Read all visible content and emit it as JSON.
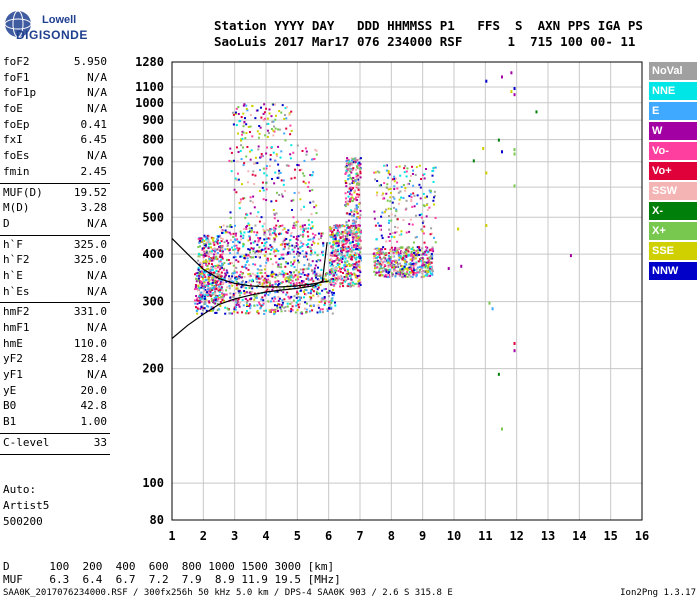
{
  "logo": {
    "line1": "Lowell",
    "line2": "DIGISONDE"
  },
  "header": {
    "labels": [
      "Station",
      "YYYY",
      "DAY",
      "DDD",
      "HHMMSS",
      "P1",
      "FFS",
      "S",
      "AXN",
      "PPS",
      "IGA",
      "PS"
    ],
    "line1": "Station YYYY DAY   DDD HHMMSS P1   FFS  S  AXN PPS IGA PS",
    "line2": "SaoLuis 2017 Mar17 076 234000 RSF      1  715 100 00- 11"
  },
  "params": [
    {
      "k": "foF2",
      "v": "5.950"
    },
    {
      "k": "foF1",
      "v": "N/A"
    },
    {
      "k": "foF1p",
      "v": "N/A"
    },
    {
      "k": "foE",
      "v": "N/A"
    },
    {
      "k": "foEp",
      "v": "0.41"
    },
    {
      "k": "fxI",
      "v": "6.45"
    },
    {
      "k": "foEs",
      "v": "N/A"
    },
    {
      "k": "fmin",
      "v": "2.45"
    },
    {
      "sep": true
    },
    {
      "k": "MUF(D)",
      "v": "19.52"
    },
    {
      "k": "M(D)",
      "v": "3.28"
    },
    {
      "k": "D",
      "v": "N/A"
    },
    {
      "sep": true
    },
    {
      "k": "h`F",
      "v": "325.0"
    },
    {
      "k": "h`F2",
      "v": "325.0"
    },
    {
      "k": "h`E",
      "v": "N/A"
    },
    {
      "k": "h`Es",
      "v": "N/A"
    },
    {
      "sep": true
    },
    {
      "k": "hmF2",
      "v": "331.0"
    },
    {
      "k": "hmF1",
      "v": "N/A"
    },
    {
      "k": "hmE",
      "v": "110.0"
    },
    {
      "k": "yF2",
      "v": "28.4"
    },
    {
      "k": "yF1",
      "v": "N/A"
    },
    {
      "k": "yE",
      "v": "20.0"
    },
    {
      "k": "B0",
      "v": "42.8"
    },
    {
      "k": "B1",
      "v": "1.00"
    },
    {
      "sep": true
    },
    {
      "k": "C-level",
      "v": "33"
    },
    {
      "sep": true
    }
  ],
  "auto": [
    "Auto:",
    "Artist5",
    "500200"
  ],
  "legend": [
    {
      "label": "NoVal",
      "color": "#a0a0a0"
    },
    {
      "label": "NNE",
      "color": "#00e5e5"
    },
    {
      "label": "E",
      "color": "#3fa9ff"
    },
    {
      "label": "W",
      "color": "#a300a3"
    },
    {
      "label": "Vo-",
      "color": "#ff3fa0"
    },
    {
      "label": "Vo+",
      "color": "#e0003a"
    },
    {
      "label": "SSW",
      "color": "#f5b4b4"
    },
    {
      "label": "X-",
      "color": "#00800a"
    },
    {
      "label": "X+",
      "color": "#78c850"
    },
    {
      "label": "SSE",
      "color": "#d0d000"
    },
    {
      "label": "NNW",
      "color": "#0000c8"
    }
  ],
  "bottom": {
    "d_line": "D      100  200  400  600  800 1000 1500 3000 [km]",
    "muf_line": "MUF    6.3  6.4  6.7  7.2  7.9  8.9 11.9 19.5 [MHz]"
  },
  "footer": "SAA0K_2017076234000.RSF / 300fx256h 50 kHz 5.0 km / DPS-4 SAA0K 903 / 2.6 S 315.8 E",
  "version": "Ion2Png 1.3.17",
  "chart_data": {
    "type": "scatter",
    "title": "",
    "xlabel": "",
    "ylabel": "",
    "xlim": [
      1,
      16
    ],
    "ylim": [
      80,
      1280
    ],
    "y_scale": "log",
    "x_ticks": [
      1,
      2,
      3,
      4,
      5,
      6,
      7,
      8,
      9,
      10,
      11,
      12,
      13,
      14,
      15,
      16
    ],
    "y_ticks": [
      80,
      100,
      200,
      300,
      400,
      500,
      600,
      700,
      800,
      900,
      1000,
      1100,
      1280
    ],
    "grid": true,
    "regions": [
      {
        "x": [
          1.7,
          6.2
        ],
        "y": [
          280,
          360
        ],
        "weight": 1.0
      },
      {
        "x": [
          2.5,
          5.8
        ],
        "y": [
          330,
          480
        ],
        "weight": 0.7
      },
      {
        "x": [
          2.8,
          5.6
        ],
        "y": [
          400,
          780
        ],
        "weight": 0.35
      },
      {
        "x": [
          1.8,
          2.6
        ],
        "y": [
          300,
          450
        ],
        "weight": 0.6
      },
      {
        "x": [
          6.0,
          7.0
        ],
        "y": [
          330,
          480
        ],
        "weight": 0.8
      },
      {
        "x": [
          6.5,
          7.0
        ],
        "y": [
          450,
          720
        ],
        "weight": 0.35
      },
      {
        "x": [
          7.4,
          9.3
        ],
        "y": [
          350,
          420
        ],
        "weight": 0.75
      },
      {
        "x": [
          7.4,
          9.4
        ],
        "y": [
          430,
          690
        ],
        "weight": 0.3
      },
      {
        "x": [
          2.9,
          4.8
        ],
        "y": [
          800,
          1000
        ],
        "weight": 0.15
      }
    ],
    "echo_colors": [
      "#e0003a",
      "#a300a3",
      "#ff3fa0",
      "#d0d000",
      "#3fa9ff",
      "#00e5e5",
      "#a0a0a0",
      "#0000c8",
      "#f5b4b4",
      "#78c850"
    ],
    "scatter_points": [
      {
        "x": 11.0,
        "y": 1150,
        "c": "#0000c8"
      },
      {
        "x": 11.5,
        "y": 1180,
        "c": "#a300a3"
      },
      {
        "x": 11.8,
        "y": 1210,
        "c": "#a300a3"
      },
      {
        "x": 11.9,
        "y": 1100,
        "c": "#0000c8"
      },
      {
        "x": 11.8,
        "y": 1080,
        "c": "#d0d000"
      },
      {
        "x": 11.9,
        "y": 1060,
        "c": "#a300a3"
      },
      {
        "x": 12.6,
        "y": 955,
        "c": "#00800a"
      },
      {
        "x": 11.4,
        "y": 805,
        "c": "#00800a"
      },
      {
        "x": 11.9,
        "y": 760,
        "c": "#78c850"
      },
      {
        "x": 11.9,
        "y": 740,
        "c": "#78c850"
      },
      {
        "x": 11.5,
        "y": 750,
        "c": "#0000c8"
      },
      {
        "x": 10.9,
        "y": 765,
        "c": "#d0d000"
      },
      {
        "x": 10.6,
        "y": 710,
        "c": "#00800a"
      },
      {
        "x": 11.0,
        "y": 660,
        "c": "#d0d000"
      },
      {
        "x": 11.9,
        "y": 610,
        "c": "#78c850"
      },
      {
        "x": 10.1,
        "y": 470,
        "c": "#d0d000"
      },
      {
        "x": 11.0,
        "y": 480,
        "c": "#d0d000"
      },
      {
        "x": 10.2,
        "y": 375,
        "c": "#a300a3"
      },
      {
        "x": 9.8,
        "y": 370,
        "c": "#a300a3"
      },
      {
        "x": 13.7,
        "y": 400,
        "c": "#a300a3"
      },
      {
        "x": 11.1,
        "y": 300,
        "c": "#78c850"
      },
      {
        "x": 11.4,
        "y": 195,
        "c": "#00800a"
      },
      {
        "x": 11.9,
        "y": 235,
        "c": "#e0003a"
      },
      {
        "x": 11.9,
        "y": 225,
        "c": "#a300a3"
      },
      {
        "x": 11.5,
        "y": 140,
        "c": "#78c850"
      },
      {
        "x": 11.2,
        "y": 290,
        "c": "#3fa9ff"
      }
    ],
    "trace_curves": [
      {
        "name": "",
        "points": [
          [
            1,
            240
          ],
          [
            1.5,
            260
          ],
          [
            2,
            278
          ],
          [
            2.5,
            295
          ],
          [
            3,
            305
          ],
          [
            3.5,
            312
          ],
          [
            4,
            318
          ],
          [
            4.5,
            322
          ],
          [
            5,
            325
          ],
          [
            5.5,
            330
          ],
          [
            5.8,
            340
          ],
          [
            5.95,
            430
          ]
        ]
      },
      {
        "name": "",
        "points": [
          [
            1,
            440
          ],
          [
            1.5,
            400
          ],
          [
            2,
            365
          ],
          [
            2.5,
            345
          ],
          [
            3,
            335
          ],
          [
            3.5,
            330
          ],
          [
            4,
            328
          ],
          [
            4.5,
            328
          ],
          [
            5,
            330
          ],
          [
            5.5,
            334
          ],
          [
            6,
            340
          ]
        ]
      }
    ]
  }
}
